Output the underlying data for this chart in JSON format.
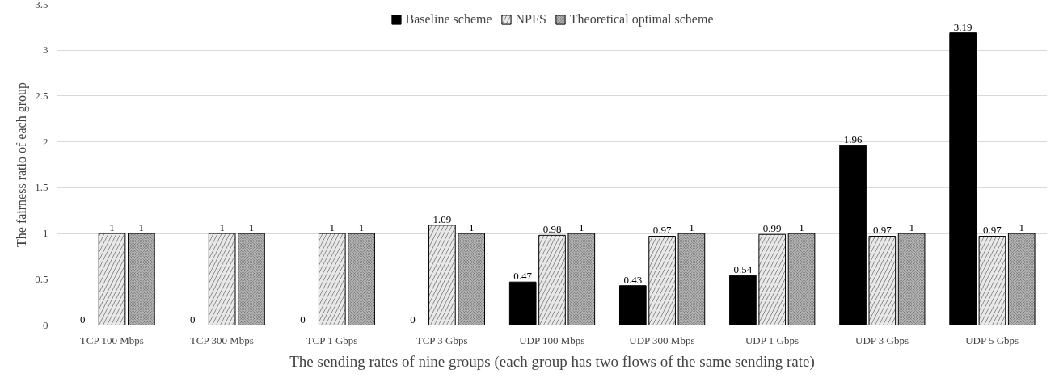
{
  "chart_data": {
    "type": "bar",
    "xlabel": "The sending rates of nine groups (each group has two flows of the same sending rate)",
    "ylabel": "The fairness ratio of each group",
    "categories": [
      "TCP 100 Mbps",
      "TCP 300 Mbps",
      "TCP 1 Gbps",
      "TCP 3 Gbps",
      "UDP 100 Mbps",
      "UDP 300 Mbps",
      "UDP 1 Gbps",
      "UDP 3 Gbps",
      "UDP 5 Gbps"
    ],
    "series": [
      {
        "name": "Baseline scheme",
        "color": "#000000",
        "values": [
          0,
          0,
          0,
          0,
          0.47,
          0.43,
          0.54,
          1.96,
          3.19
        ]
      },
      {
        "name": "NPFS",
        "color": "#e8e8e8",
        "values": [
          1,
          1,
          1,
          1.09,
          0.98,
          0.97,
          0.99,
          0.97,
          0.97
        ]
      },
      {
        "name": "Theoretical optimal scheme",
        "color": "#b0b0b0",
        "values": [
          1,
          1,
          1,
          1,
          1,
          1,
          1,
          1,
          1
        ]
      }
    ],
    "ylim": [
      0,
      3.5
    ],
    "yticks": [
      0,
      0.5,
      1,
      1.5,
      2,
      2.5,
      3,
      3.5
    ],
    "grid": "y",
    "legend": "top",
    "data_labels": true
  }
}
